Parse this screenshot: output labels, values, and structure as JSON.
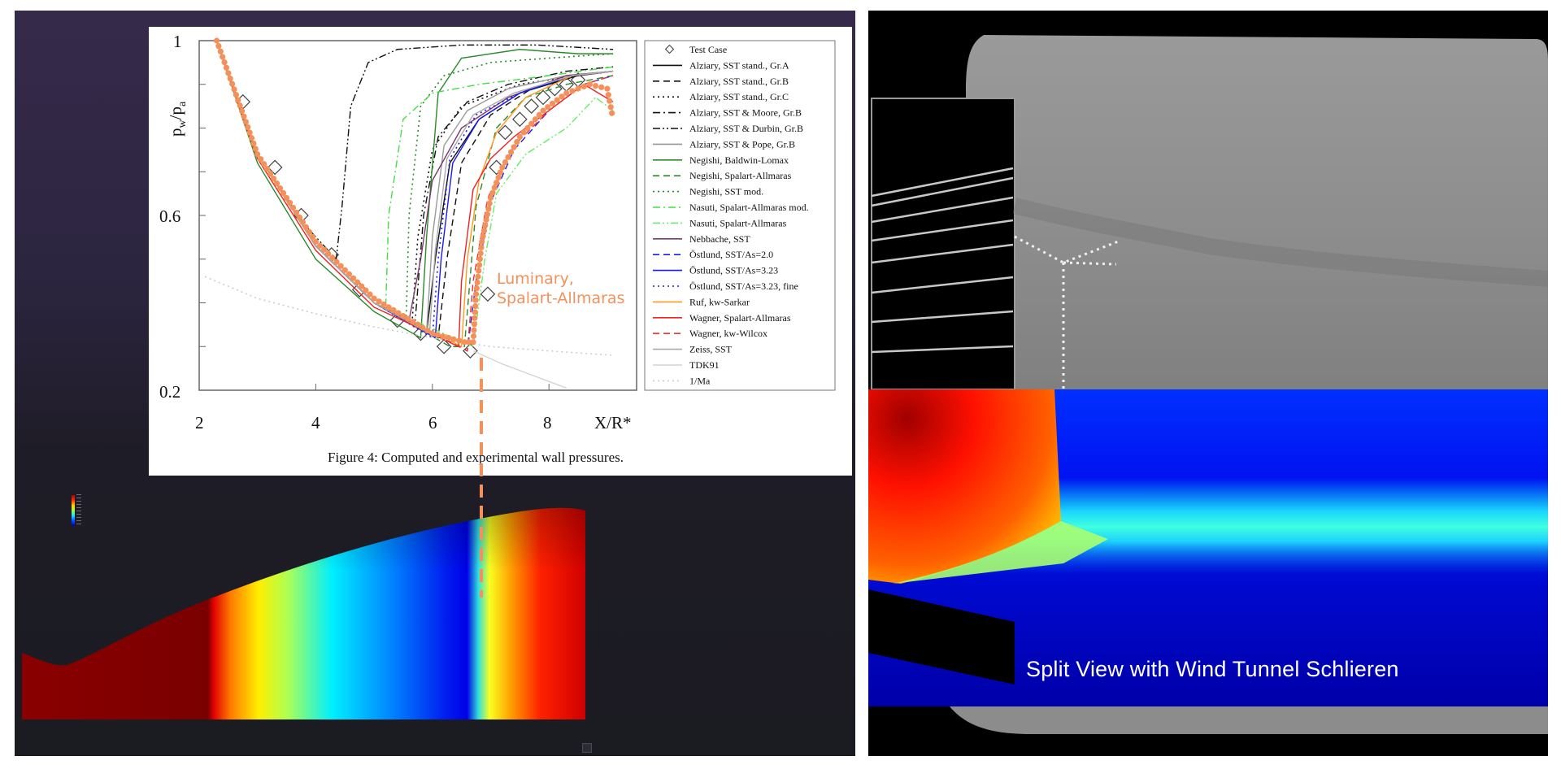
{
  "chart_data": {
    "type": "line",
    "title": "",
    "caption": "Figure 4: Computed and experimental wall pressures.",
    "xlabel": "X/R*",
    "ylabel": "pw/pa",
    "ylabel_main": "p",
    "ylabel_sub_w": "w",
    "ylabel_div": "/p",
    "ylabel_sub_a": "a",
    "xlim": [
      2,
      9.5
    ],
    "ylim": [
      0.2,
      1.0
    ],
    "xticks": [
      2,
      4,
      6,
      8
    ],
    "yticks": [
      1,
      0.6,
      0.2
    ],
    "xtick_labels": [
      "2",
      "4",
      "6",
      "8"
    ],
    "ytick_labels": [
      "1",
      "0.6",
      "0.2"
    ],
    "grid": false,
    "legend_position": "right",
    "series": [
      {
        "name": "Test Case",
        "style": "marker-diamond",
        "color": "#444444",
        "x": [
          2.75,
          3.3,
          3.75,
          4.27,
          4.75,
          5.4,
          5.8,
          6.2,
          6.65,
          6.95,
          7.1,
          7.25,
          7.5,
          7.7,
          7.9,
          8.1,
          8.3,
          8.5
        ],
        "y": [
          0.86,
          0.71,
          0.6,
          0.51,
          0.43,
          0.36,
          0.33,
          0.3,
          0.29,
          0.42,
          0.71,
          0.79,
          0.82,
          0.85,
          0.87,
          0.89,
          0.9,
          0.91
        ]
      },
      {
        "name": "Alziary, SST stand., Gr.A",
        "style": "solid",
        "color": "#111111",
        "x": [
          2.3,
          3,
          4,
          5,
          5.9,
          6.05,
          6.3,
          6.8,
          7.5,
          8.5,
          9.1
        ],
        "y": [
          1.0,
          0.74,
          0.53,
          0.4,
          0.33,
          0.5,
          0.72,
          0.82,
          0.88,
          0.92,
          0.93
        ]
      },
      {
        "name": "Alziary, SST stand., Gr.B",
        "style": "dash",
        "color": "#111111",
        "x": [
          2.3,
          3,
          4,
          5,
          6.1,
          6.25,
          6.5,
          7,
          7.7,
          8.5,
          9.1
        ],
        "y": [
          1.0,
          0.74,
          0.53,
          0.4,
          0.32,
          0.5,
          0.72,
          0.83,
          0.89,
          0.92,
          0.93
        ]
      },
      {
        "name": "Alziary, SST stand., Gr.C",
        "style": "dot",
        "color": "#111111",
        "x": [
          2.3,
          3,
          4,
          5,
          5.65,
          5.75,
          6.0,
          6.5,
          7.5,
          8.5,
          9.1
        ],
        "y": [
          1.0,
          0.74,
          0.53,
          0.4,
          0.35,
          0.55,
          0.75,
          0.85,
          0.9,
          0.92,
          0.93
        ]
      },
      {
        "name": "Alziary, SST & Moore, Gr.B",
        "style": "dashdot",
        "color": "#111111",
        "x": [
          2.3,
          3,
          4,
          5,
          5.7,
          5.85,
          6.1,
          6.6,
          7.3,
          8.3,
          9.1
        ],
        "y": [
          1.0,
          0.74,
          0.53,
          0.4,
          0.35,
          0.6,
          0.78,
          0.86,
          0.9,
          0.93,
          0.94
        ]
      },
      {
        "name": "Alziary, SST & Durbin, Gr.B",
        "style": "dashdotdot",
        "color": "#111111",
        "x": [
          2.3,
          3,
          3.8,
          4.35,
          4.45,
          4.6,
          4.9,
          5.4,
          6.5,
          7.8,
          9.1
        ],
        "y": [
          1.0,
          0.74,
          0.58,
          0.5,
          0.62,
          0.85,
          0.95,
          0.98,
          0.99,
          0.99,
          0.98
        ]
      },
      {
        "name": "Alziary, SST & Pope, Gr.B",
        "style": "solid",
        "color": "#999999",
        "x": [
          2.3,
          3,
          4,
          5,
          5.9,
          6.0,
          6.2,
          6.6,
          7.3,
          8.3,
          9.1
        ],
        "y": [
          1.0,
          0.74,
          0.53,
          0.4,
          0.33,
          0.55,
          0.76,
          0.84,
          0.89,
          0.92,
          0.93
        ]
      },
      {
        "name": "Negishi, Baldwin-Lomax",
        "style": "solid",
        "color": "#2a8a2a",
        "x": [
          2.3,
          3,
          4,
          5,
          5.8,
          5.9,
          6.1,
          6.5,
          7.5,
          8.5,
          9.1
        ],
        "y": [
          1.0,
          0.72,
          0.5,
          0.38,
          0.32,
          0.55,
          0.88,
          0.96,
          0.98,
          0.97,
          0.97
        ]
      },
      {
        "name": "Negishi, Spalart-Allmaras",
        "style": "dash",
        "color": "#2a8a2a",
        "x": [
          2.3,
          3,
          4,
          5,
          6.3,
          6.55,
          6.75,
          7.1,
          7.6,
          8.3,
          9.1
        ],
        "y": [
          1.0,
          0.74,
          0.53,
          0.4,
          0.3,
          0.3,
          0.62,
          0.8,
          0.87,
          0.9,
          0.92
        ]
      },
      {
        "name": "Negishi, SST mod.",
        "style": "dot",
        "color": "#2a8a2a",
        "x": [
          2.3,
          3,
          4,
          5,
          5.55,
          5.6,
          5.8,
          6.2,
          7,
          8,
          9.1
        ],
        "y": [
          1.0,
          0.74,
          0.53,
          0.4,
          0.36,
          0.6,
          0.85,
          0.92,
          0.95,
          0.96,
          0.97
        ]
      },
      {
        "name": "Nasuti, Spalart-Allmaras mod.",
        "style": "dashdot",
        "color": "#44dd44",
        "x": [
          2.3,
          3,
          4,
          5,
          5.2,
          5.25,
          5.5,
          6.0,
          6.8,
          8.0,
          9.1
        ],
        "y": [
          1.0,
          0.74,
          0.53,
          0.4,
          0.39,
          0.6,
          0.82,
          0.88,
          0.9,
          0.92,
          0.94
        ]
      },
      {
        "name": "Nasuti, Spalart-Allmaras",
        "style": "dashdotdot",
        "color": "#66ee66",
        "x": [
          2.3,
          3,
          4,
          5,
          6.7,
          6.9,
          7.1,
          7.6,
          8.3,
          8.8,
          9.1
        ],
        "y": [
          1.0,
          0.74,
          0.53,
          0.4,
          0.3,
          0.5,
          0.65,
          0.74,
          0.8,
          0.87,
          0.84
        ]
      },
      {
        "name": "Nebbache, SST",
        "style": "solid",
        "color": "#7a3a6a",
        "x": [
          2.3,
          3,
          4,
          5,
          5.6,
          5.8,
          6.0,
          6.5,
          7.3,
          8.3,
          9.1
        ],
        "y": [
          1.0,
          0.74,
          0.53,
          0.4,
          0.36,
          0.5,
          0.68,
          0.8,
          0.87,
          0.92,
          0.93
        ]
      },
      {
        "name": "Östlund, SST/As=2.0",
        "style": "dash",
        "color": "#1a1aee",
        "x": [
          2.3,
          3,
          4,
          5,
          6.6,
          6.75,
          7.0,
          7.4,
          8.0,
          8.6,
          9.1
        ],
        "y": [
          1.0,
          0.74,
          0.53,
          0.4,
          0.29,
          0.45,
          0.63,
          0.75,
          0.84,
          0.9,
          0.92
        ]
      },
      {
        "name": "Östlund, SST/As=3.23",
        "style": "solid",
        "color": "#1a1aee",
        "x": [
          2.3,
          3,
          4,
          5,
          6.05,
          6.15,
          6.35,
          6.8,
          7.5,
          8.4,
          9.1
        ],
        "y": [
          1.0,
          0.74,
          0.53,
          0.4,
          0.32,
          0.5,
          0.72,
          0.82,
          0.88,
          0.92,
          0.93
        ]
      },
      {
        "name": "Östlund, SST/As=3.23, fine",
        "style": "dot",
        "color": "#1a1aee",
        "x": [
          2.3,
          3,
          4,
          5,
          6.0,
          6.1,
          6.3,
          6.75,
          7.5,
          8.4,
          9.1
        ],
        "y": [
          1.0,
          0.74,
          0.53,
          0.4,
          0.32,
          0.5,
          0.73,
          0.83,
          0.88,
          0.92,
          0.93
        ]
      },
      {
        "name": "Ruf, kw-Sarkar",
        "style": "solid",
        "color": "#ff9922",
        "x": [
          2.3,
          3,
          4,
          5,
          6.5,
          6.6,
          6.8,
          7.1,
          7.6,
          8.4,
          9.1
        ],
        "y": [
          1.0,
          0.74,
          0.53,
          0.4,
          0.3,
          0.5,
          0.68,
          0.79,
          0.87,
          0.92,
          0.93
        ]
      },
      {
        "name": "Wagner, Spalart-Allmaras",
        "style": "solid",
        "color": "#ee2222",
        "x": [
          2.3,
          3,
          4,
          5,
          6.45,
          6.5,
          6.7,
          7.0,
          7.4,
          8.0,
          8.6,
          9.1
        ],
        "y": [
          1.0,
          0.73,
          0.52,
          0.39,
          0.3,
          0.45,
          0.66,
          0.73,
          0.78,
          0.84,
          0.9,
          0.86
        ]
      },
      {
        "name": "Wagner, kw-Wilcox",
        "style": "dash",
        "color": "#ee3333",
        "x": [
          2.3,
          3,
          4,
          5,
          6.6,
          6.7,
          6.95,
          7.4,
          8.0,
          8.6,
          9.1
        ],
        "y": [
          1.0,
          0.74,
          0.53,
          0.4,
          0.29,
          0.45,
          0.64,
          0.76,
          0.84,
          0.9,
          0.92
        ]
      },
      {
        "name": "Zeiss, SST",
        "style": "solid",
        "color": "#aaaaaa",
        "x": [
          2.3,
          3,
          4,
          5,
          5.95,
          6.05,
          6.25,
          6.7,
          7.4,
          8.4,
          9.1
        ],
        "y": [
          1.0,
          0.74,
          0.53,
          0.4,
          0.33,
          0.52,
          0.73,
          0.83,
          0.88,
          0.92,
          0.93
        ]
      },
      {
        "name": "TDK91",
        "style": "solid",
        "color": "#d4d4d4",
        "x": [
          6.7,
          7.2,
          7.8,
          8.3
        ],
        "y": [
          0.29,
          0.26,
          0.23,
          0.205
        ]
      },
      {
        "name": "1/Ma",
        "style": "dot",
        "color": "#cccccc",
        "x": [
          2.1,
          3,
          4,
          5,
          6,
          7,
          8,
          9.1
        ],
        "y": [
          0.46,
          0.41,
          0.375,
          0.345,
          0.32,
          0.3,
          0.29,
          0.28
        ]
      },
      {
        "name": "Luminary, Spalart-Allmaras",
        "style": "orange-dots",
        "color": "#f4915a",
        "x": [
          2.3,
          3,
          4,
          5,
          6,
          6.55,
          6.7,
          6.75,
          6.85,
          7.0,
          7.2,
          7.5,
          7.9,
          8.3,
          8.7,
          9.0,
          9.1
        ],
        "y": [
          1.0,
          0.74,
          0.54,
          0.41,
          0.33,
          0.31,
          0.31,
          0.42,
          0.54,
          0.64,
          0.71,
          0.78,
          0.84,
          0.88,
          0.9,
          0.89,
          0.82
        ]
      }
    ],
    "annotations": [
      {
        "text": "Luminary,\nSpalart-Allmaras",
        "x": 6.85,
        "y": 0.41,
        "color": "#f4915a"
      },
      {
        "text": "vertical dashed marker",
        "x": 6.75,
        "color": "#f4915a"
      }
    ]
  },
  "chart": {
    "legend_items": [
      "Test Case",
      "Alziary, SST stand., Gr.A",
      "Alziary, SST stand., Gr.B",
      "Alziary, SST stand., Gr.C",
      "Alziary, SST & Moore, Gr.B",
      "Alziary, SST & Durbin, Gr.B",
      "Alziary, SST & Pope, Gr.B",
      "Negishi, Baldwin-Lomax",
      "Negishi, Spalart-Allmaras",
      "Negishi, SST mod.",
      "Nasuti, Spalart-Allmaras mod.",
      "Nasuti, Spalart-Allmaras",
      "Nebbache, SST",
      "Östlund, SST/As=2.0",
      "Östlund, SST/As=3.23",
      "Östlund, SST/As=3.23, fine",
      "Ruf, kw-Sarkar",
      "Wagner, Spalart-Allmaras",
      "Wagner, kw-Wilcox",
      "Zeiss, SST",
      "TDK91",
      "1/Ma"
    ],
    "overlay_label_line1": "Luminary,",
    "overlay_label_line2": "Spalart-Allmaras"
  },
  "cfd_view": {
    "colorbar_colors": [
      "#b00000",
      "#ff3000",
      "#ffd000",
      "#a0ff40",
      "#20e0ff",
      "#0050ff",
      "#0000a0"
    ]
  },
  "split_view": {
    "title": "Split View with Wind Tunnel Schlieren"
  },
  "colors": {
    "accent_orange": "#f4915a",
    "left_bg_top": "#362a4a",
    "left_bg_bottom": "#1b1b22"
  }
}
